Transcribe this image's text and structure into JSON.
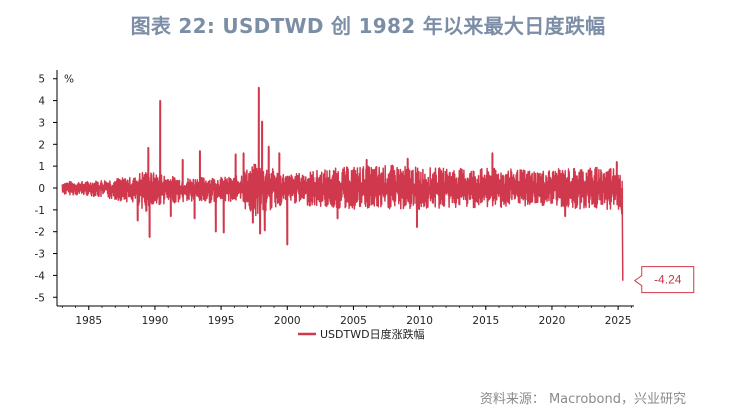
{
  "title": "图表 22: USDTWD 创 1982 年以来最大日度跌幅",
  "source": "资料来源：  Macrobond，兴业研究",
  "chart_data": {
    "type": "line",
    "ylabel": "%",
    "ylim": [
      -5.4,
      5.4
    ],
    "yticks": [
      5,
      4,
      3,
      2,
      1,
      0,
      -1,
      -2,
      -3,
      -4,
      -5
    ],
    "xlim": [
      1982.6,
      2026.2
    ],
    "xticks": [
      1985,
      1990,
      1995,
      2000,
      2005,
      2010,
      2015,
      2020,
      2025
    ],
    "line_color": "#d0394d",
    "series": [
      {
        "name": "USDTWD日度涨跌幅",
        "envelope": [
          {
            "x": 1983.0,
            "high": 0.3,
            "low": -0.3
          },
          {
            "x": 1985.0,
            "high": 0.3,
            "low": -0.35
          },
          {
            "x": 1987.0,
            "high": 0.45,
            "low": -0.55
          },
          {
            "x": 1988.5,
            "high": 0.5,
            "low": -0.7
          },
          {
            "x": 1989.0,
            "high": 0.8,
            "low": -1.2
          },
          {
            "x": 1990.5,
            "high": 0.65,
            "low": -0.75
          },
          {
            "x": 1992.0,
            "high": 0.45,
            "low": -0.65
          },
          {
            "x": 1994.0,
            "high": 0.5,
            "low": -0.7
          },
          {
            "x": 1996.0,
            "high": 0.5,
            "low": -0.6
          },
          {
            "x": 1997.5,
            "high": 1.1,
            "low": -1.3
          },
          {
            "x": 1998.5,
            "high": 1.0,
            "low": -1.1
          },
          {
            "x": 2000.0,
            "high": 0.6,
            "low": -0.65
          },
          {
            "x": 2002.0,
            "high": 0.8,
            "low": -0.85
          },
          {
            "x": 2005.0,
            "high": 1.0,
            "low": -1.0
          },
          {
            "x": 2008.0,
            "high": 1.05,
            "low": -1.0
          },
          {
            "x": 2010.0,
            "high": 0.95,
            "low": -1.0
          },
          {
            "x": 2013.0,
            "high": 0.9,
            "low": -0.9
          },
          {
            "x": 2016.0,
            "high": 0.9,
            "low": -0.9
          },
          {
            "x": 2019.0,
            "high": 0.8,
            "low": -0.8
          },
          {
            "x": 2022.0,
            "high": 0.95,
            "low": -0.95
          },
          {
            "x": 2025.1,
            "high": 1.0,
            "low": -1.0
          }
        ],
        "spikes": [
          {
            "x": 1988.7,
            "value": -1.5
          },
          {
            "x": 1989.5,
            "value": 1.85
          },
          {
            "x": 1989.6,
            "value": -2.25
          },
          {
            "x": 1990.4,
            "value": 4.0
          },
          {
            "x": 1991.2,
            "value": -1.3
          },
          {
            "x": 1992.1,
            "value": 1.3
          },
          {
            "x": 1993.0,
            "value": -1.4
          },
          {
            "x": 1993.4,
            "value": 1.7
          },
          {
            "x": 1994.6,
            "value": -2.0
          },
          {
            "x": 1995.2,
            "value": -2.05
          },
          {
            "x": 1996.1,
            "value": 1.55
          },
          {
            "x": 1996.7,
            "value": 1.6
          },
          {
            "x": 1997.4,
            "value": -1.6
          },
          {
            "x": 1997.85,
            "value": 4.6
          },
          {
            "x": 1997.95,
            "value": -2.1
          },
          {
            "x": 1998.1,
            "value": 3.05
          },
          {
            "x": 1998.3,
            "value": -1.95
          },
          {
            "x": 1998.6,
            "value": 1.9
          },
          {
            "x": 1999.4,
            "value": 1.6
          },
          {
            "x": 2000.0,
            "value": -2.6
          },
          {
            "x": 2003.8,
            "value": -1.4
          },
          {
            "x": 2006.0,
            "value": 1.3
          },
          {
            "x": 2009.1,
            "value": 1.35
          },
          {
            "x": 2009.8,
            "value": -1.8
          },
          {
            "x": 2015.5,
            "value": 1.6
          },
          {
            "x": 2021.0,
            "value": -1.3
          },
          {
            "x": 2024.9,
            "value": 1.2
          },
          {
            "x": 2025.3,
            "value": -1.2
          }
        ],
        "last_point": {
          "x": 2025.35,
          "value": -4.24
        }
      }
    ],
    "annotations": [
      {
        "x": 2025.35,
        "value": -4.24,
        "text": "-4.24"
      }
    ],
    "legend": {
      "position": "bottom-center"
    }
  }
}
